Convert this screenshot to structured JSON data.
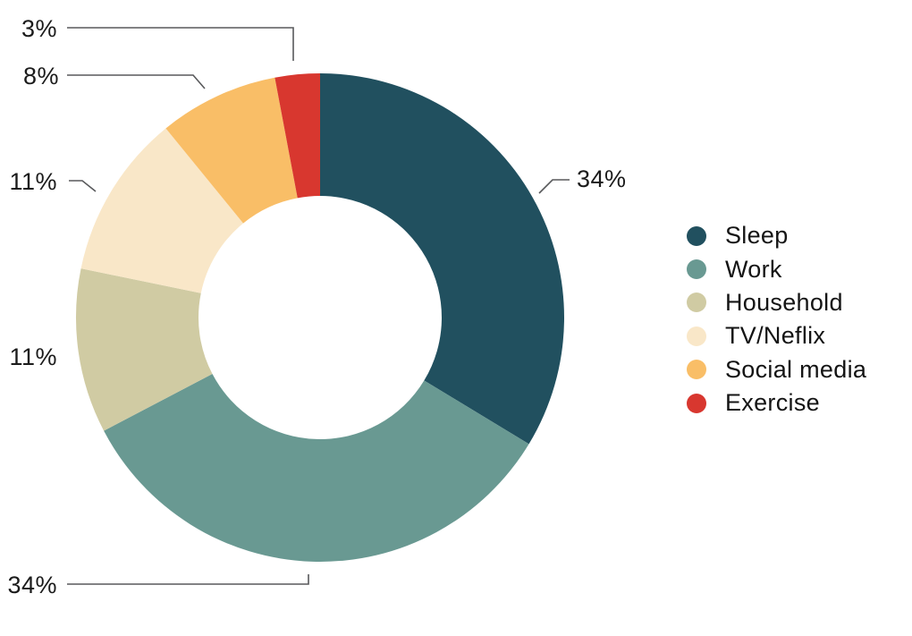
{
  "page": {
    "background_color": "#ffffff"
  },
  "chart_data": {
    "type": "pie",
    "subtype": "donut",
    "title": "",
    "legend_position": "right",
    "start_angle_deg": 0,
    "direction": "clockwise",
    "hole_ratio": 0.5,
    "categories": [
      "Sleep",
      "Work",
      "Household",
      "TV/Neflix",
      "Social media",
      "Exercise"
    ],
    "values": [
      34,
      34,
      11,
      11,
      8,
      3
    ],
    "slices": [
      {
        "label": "Sleep",
        "value": 34,
        "display": "34%",
        "color": "#21505F"
      },
      {
        "label": "Work",
        "value": 34,
        "display": "34%",
        "color": "#699992"
      },
      {
        "label": "Household",
        "value": 11,
        "display": "11%",
        "color": "#D0CBA3"
      },
      {
        "label": "TV/Neflix",
        "value": 11,
        "display": "11%",
        "color": "#F9E7C8"
      },
      {
        "label": "Social media",
        "value": 8,
        "display": "8%",
        "color": "#F9BE67"
      },
      {
        "label": "Exercise",
        "value": 3,
        "display": "3%",
        "color": "#D8372F"
      }
    ]
  }
}
